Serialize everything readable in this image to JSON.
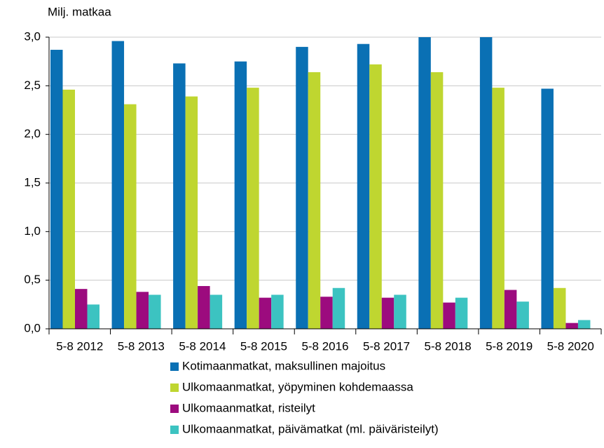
{
  "chart_data": {
    "type": "bar",
    "y_label": "Milj. matkaa",
    "categories": [
      "5-8 2012",
      "5-8 2013",
      "5-8 2014",
      "5-8 2015",
      "5-8 2016",
      "5-8 2017",
      "5-8 2018",
      "5-8 2019",
      "5-8 2020"
    ],
    "series": [
      {
        "name": "Kotimaanmatkat, maksullinen majoitus",
        "color": "#0a70b4",
        "values": [
          2.87,
          2.96,
          2.73,
          2.75,
          2.9,
          2.93,
          3.0,
          3.0,
          2.47
        ]
      },
      {
        "name": "Ulkomaanmatkat, yöpyminen kohdemaassa",
        "color": "#bfd630",
        "values": [
          2.46,
          2.31,
          2.39,
          2.48,
          2.64,
          2.72,
          2.64,
          2.48,
          0.42
        ]
      },
      {
        "name": "Ulkomaanmatkat, risteilyt",
        "color": "#9c0b7e",
        "values": [
          0.41,
          0.38,
          0.44,
          0.32,
          0.33,
          0.32,
          0.27,
          0.4,
          0.06
        ]
      },
      {
        "name": "Ulkomaanmatkat, päivämatkat (ml. päiväristeilyt)",
        "color": "#3cc3c1",
        "values": [
          0.25,
          0.35,
          0.35,
          0.35,
          0.42,
          0.35,
          0.32,
          0.28,
          0.09
        ]
      }
    ],
    "ylim": [
      0,
      3
    ],
    "yticks": [
      {
        "value": 0,
        "label": "0,0"
      },
      {
        "value": 0.5,
        "label": "0,5"
      },
      {
        "value": 1,
        "label": "1,0"
      },
      {
        "value": 1.5,
        "label": "1,5"
      },
      {
        "value": 2,
        "label": "2,0"
      },
      {
        "value": 2.5,
        "label": "2,5"
      },
      {
        "value": 3,
        "label": "3,0"
      }
    ],
    "grid": true
  }
}
